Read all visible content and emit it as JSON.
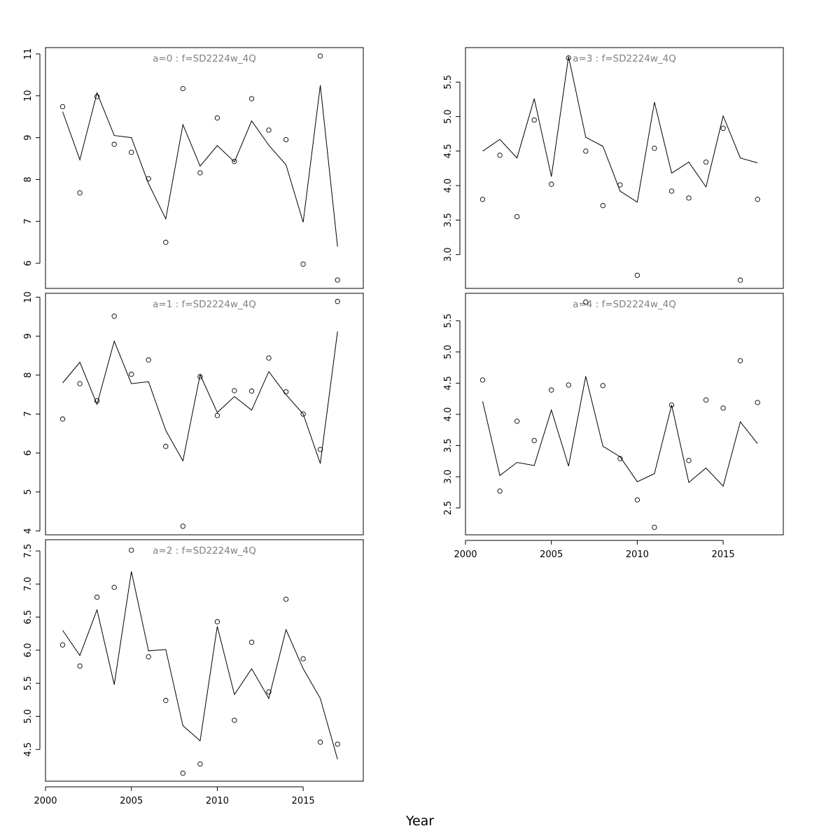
{
  "chart_data": [
    {
      "type": "line",
      "title": "a=0  :  f=SD2224w_4Q",
      "xlabel": "Year",
      "x": [
        2001,
        2002,
        2003,
        2004,
        2005,
        2006,
        2007,
        2008,
        2009,
        2010,
        2011,
        2012,
        2013,
        2014,
        2015,
        2016,
        2017
      ],
      "series": [
        {
          "style": "line",
          "values": [
            9.62,
            8.47,
            10.07,
            9.05,
            9.0,
            7.9,
            7.06,
            9.31,
            8.32,
            8.81,
            8.42,
            9.4,
            8.82,
            8.35,
            6.98,
            10.25,
            6.4
          ]
        },
        {
          "style": "points",
          "values": [
            9.74,
            7.68,
            9.98,
            8.84,
            8.65,
            8.02,
            6.5,
            10.17,
            8.16,
            9.47,
            8.43,
            9.93,
            9.18,
            8.95,
            5.98,
            10.95,
            5.6
          ]
        }
      ],
      "xlim": [
        2000,
        2018.5
      ],
      "ylim": [
        5.4,
        11.15
      ],
      "yticks": [
        6,
        7,
        8,
        9,
        10,
        11
      ],
      "show_xaxis": false
    },
    {
      "type": "line",
      "title": "a=1  :  f=SD2224w_4Q",
      "xlabel": "Year",
      "x": [
        2001,
        2002,
        2003,
        2004,
        2005,
        2006,
        2007,
        2008,
        2009,
        2010,
        2011,
        2012,
        2013,
        2014,
        2015,
        2016,
        2017
      ],
      "series": [
        {
          "style": "line",
          "values": [
            7.8,
            8.33,
            7.25,
            8.87,
            7.78,
            7.83,
            6.58,
            5.8,
            8.01,
            7.04,
            7.45,
            7.1,
            8.09,
            7.5,
            7.0,
            5.73,
            9.12
          ]
        },
        {
          "style": "points",
          "values": [
            6.87,
            7.78,
            7.34,
            9.51,
            8.02,
            8.39,
            6.17,
            4.12,
            7.96,
            6.96,
            7.6,
            7.59,
            8.44,
            7.57,
            7.0,
            6.09,
            9.89
          ]
        }
      ],
      "xlim": [
        2000,
        2018.5
      ],
      "ylim": [
        3.9,
        10.1
      ],
      "yticks": [
        4,
        5,
        6,
        7,
        8,
        9,
        10
      ],
      "show_xaxis": false
    },
    {
      "type": "line",
      "title": "a=2  :  f=SD2224w_4Q",
      "xlabel": "Year",
      "x": [
        2001,
        2002,
        2003,
        2004,
        2005,
        2006,
        2007,
        2008,
        2009,
        2010,
        2011,
        2012,
        2013,
        2014,
        2015,
        2016,
        2017
      ],
      "series": [
        {
          "style": "line",
          "values": [
            6.3,
            5.92,
            6.61,
            5.48,
            7.19,
            5.99,
            6.01,
            4.86,
            4.63,
            6.36,
            5.33,
            5.72,
            5.27,
            6.31,
            5.72,
            5.27,
            4.35
          ]
        },
        {
          "style": "points",
          "values": [
            6.08,
            5.76,
            6.8,
            6.95,
            7.51,
            5.9,
            5.24,
            4.14,
            4.28,
            6.43,
            4.94,
            6.12,
            5.37,
            6.77,
            5.87,
            4.61,
            4.58
          ]
        }
      ],
      "xlim": [
        2000,
        2018.5
      ],
      "ylim": [
        4.02,
        7.67
      ],
      "yticks": [
        4.5,
        5.0,
        5.5,
        6.0,
        6.5,
        7.0,
        7.5
      ],
      "ytick_labels": [
        "4.5",
        "5.0",
        "5.5",
        "6.0",
        "6.5",
        "7.0",
        "7.5"
      ],
      "xticks": [
        2000,
        2005,
        2010,
        2015
      ],
      "show_xaxis": true
    },
    {
      "type": "line",
      "title": "a=3  :  f=SD2224w_4Q",
      "xlabel": "Year",
      "x": [
        2001,
        2002,
        2003,
        2004,
        2005,
        2006,
        2007,
        2008,
        2009,
        2010,
        2011,
        2012,
        2013,
        2014,
        2015,
        2016,
        2017
      ],
      "series": [
        {
          "style": "line",
          "values": [
            4.5,
            4.67,
            4.4,
            5.26,
            4.13,
            5.87,
            4.7,
            4.57,
            3.92,
            3.76,
            5.21,
            4.18,
            4.34,
            3.98,
            5.01,
            4.4,
            4.33
          ]
        },
        {
          "style": "points",
          "values": [
            3.8,
            4.44,
            3.55,
            4.95,
            4.02,
            5.85,
            4.5,
            3.71,
            4.01,
            2.7,
            4.54,
            3.92,
            3.82,
            4.34,
            4.83,
            2.63,
            3.8
          ]
        }
      ],
      "xlim": [
        2000,
        2018.5
      ],
      "ylim": [
        2.51,
        6.0
      ],
      "yticks": [
        3.0,
        3.5,
        4.0,
        4.5,
        5.0,
        5.5
      ],
      "ytick_labels": [
        "3.0",
        "3.5",
        "4.0",
        "4.5",
        "5.0",
        "5.5"
      ],
      "show_xaxis": false
    },
    {
      "type": "line",
      "title": "a=4  :  f=SD2224w_4Q",
      "xlabel": "Year",
      "x": [
        2001,
        2002,
        2003,
        2004,
        2005,
        2006,
        2007,
        2008,
        2009,
        2010,
        2011,
        2012,
        2013,
        2014,
        2015,
        2016,
        2017
      ],
      "series": [
        {
          "style": "line",
          "values": [
            4.21,
            3.02,
            3.23,
            3.18,
            4.07,
            3.17,
            4.61,
            3.49,
            3.32,
            2.92,
            3.05,
            4.15,
            2.91,
            3.14,
            2.85,
            3.88,
            3.53
          ]
        },
        {
          "style": "points",
          "values": [
            4.55,
            2.77,
            3.89,
            3.58,
            4.39,
            4.47,
            5.8,
            4.46,
            3.29,
            2.63,
            2.19,
            4.15,
            3.26,
            4.23,
            4.1,
            4.86,
            4.19
          ]
        }
      ],
      "xlim": [
        2000,
        2018.5
      ],
      "ylim": [
        2.07,
        5.94
      ],
      "yticks": [
        2.5,
        3.0,
        3.5,
        4.0,
        4.5,
        5.0,
        5.5
      ],
      "ytick_labels": [
        "2.5",
        "3.0",
        "3.5",
        "4.0",
        "4.5",
        "5.0",
        "5.5"
      ],
      "xticks": [
        2000,
        2005,
        2010,
        2015
      ],
      "show_xaxis": true
    }
  ],
  "figure": {
    "xlabel": "Year"
  }
}
